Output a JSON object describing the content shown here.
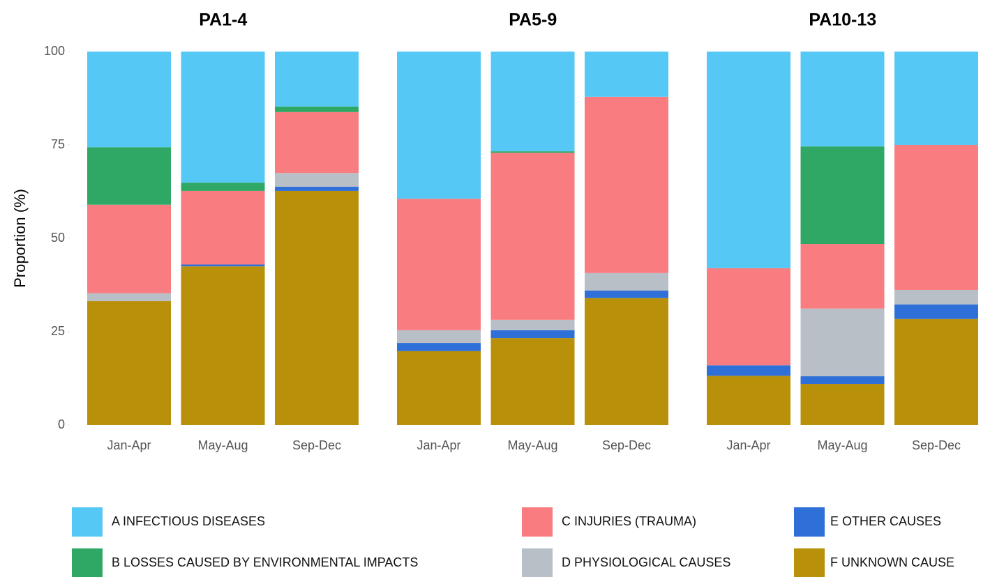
{
  "chart_data": [
    {
      "type": "stacked_bar",
      "title": "PA1-4",
      "ylabel": "Proportion (%)",
      "categories": [
        "Jan-Apr",
        "May-Aug",
        "Sep-Dec"
      ],
      "ylim": [
        0,
        100
      ],
      "yticks": [
        0,
        25,
        50,
        75,
        100
      ],
      "series": [
        {
          "name": "A INFECTIOUS DISEASES",
          "color": "#56c8f5",
          "values": [
            25.6,
            35.1,
            14.7
          ]
        },
        {
          "name": "B LOSSES CAUSED BY ENVIRONMENTAL IMPACTS",
          "color": "#2fa866",
          "values": [
            15.4,
            2.2,
            1.5
          ]
        },
        {
          "name": "C INJURIES (TRAUMA)",
          "color": "#f87c80",
          "values": [
            23.7,
            19.7,
            16.3
          ]
        },
        {
          "name": "D PHYSIOLOGICAL CAUSES",
          "color": "#b9bfc7",
          "values": [
            2.1,
            0,
            3.7
          ]
        },
        {
          "name": "E OTHER  CAUSES",
          "color": "#2f6fd8",
          "values": [
            0,
            0.5,
            1.1
          ]
        },
        {
          "name": "F UNKNOWN CAUSE",
          "color": "#b8900a",
          "values": [
            33.2,
            42.5,
            62.7
          ]
        }
      ]
    },
    {
      "type": "stacked_bar",
      "title": "PA5-9",
      "categories": [
        "Jan-Apr",
        "May-Aug",
        "Sep-Dec"
      ],
      "ylim": [
        0,
        100
      ],
      "series": [
        {
          "values": [
            39.4,
            26.7,
            12.1
          ]
        },
        {
          "values": [
            0,
            0.4,
            0
          ]
        },
        {
          "values": [
            35.2,
            44.7,
            47.2
          ]
        },
        {
          "values": [
            3.4,
            2.8,
            4.7
          ]
        },
        {
          "values": [
            2.2,
            2.1,
            2.0
          ]
        },
        {
          "values": [
            19.8,
            23.3,
            34.0
          ]
        }
      ]
    },
    {
      "type": "stacked_bar",
      "title": "PA10-13",
      "categories": [
        "Jan-Apr",
        "May-Aug",
        "Sep-Dec"
      ],
      "ylim": [
        0,
        100
      ],
      "series": [
        {
          "values": [
            58.0,
            25.4,
            25.0
          ]
        },
        {
          "values": [
            0,
            26.1,
            0
          ]
        },
        {
          "values": [
            26.0,
            17.3,
            38.8
          ]
        },
        {
          "values": [
            0,
            18.1,
            3.9
          ]
        },
        {
          "values": [
            2.8,
            2.1,
            3.9
          ]
        },
        {
          "values": [
            13.2,
            11.0,
            28.4
          ]
        }
      ]
    }
  ]
}
